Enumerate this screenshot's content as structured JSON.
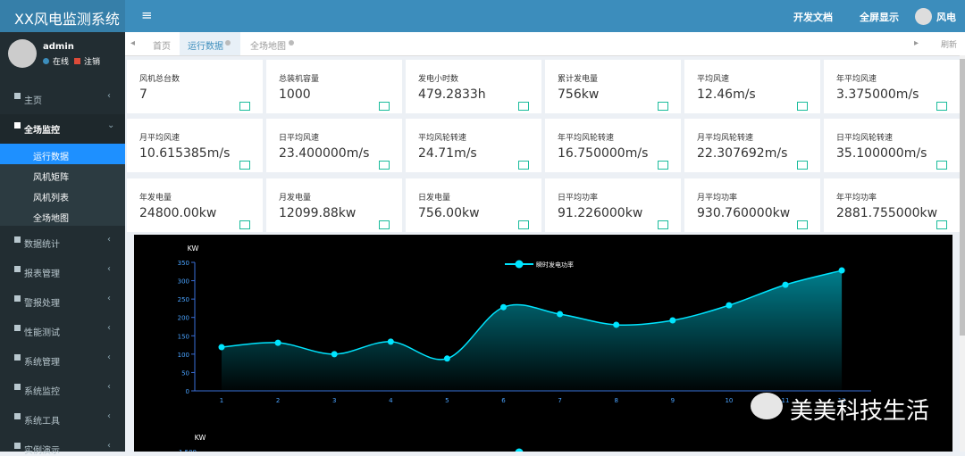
{
  "header": {
    "title": "XX风电监测系统",
    "links": [
      "开发文档",
      "全屏显示"
    ],
    "user": "风电"
  },
  "sidebar": {
    "user": {
      "name": "admin",
      "status": "在线",
      "logout": "注销"
    },
    "menu": [
      {
        "label": "主页"
      },
      {
        "label": "全场监控",
        "children": [
          "运行数据",
          "风机矩阵",
          "风机列表",
          "全场地图"
        ]
      },
      {
        "label": "数据统计"
      },
      {
        "label": "报表管理"
      },
      {
        "label": "警报处理"
      },
      {
        "label": "性能测试"
      },
      {
        "label": "系统管理"
      },
      {
        "label": "系统监控"
      },
      {
        "label": "系统工具"
      },
      {
        "label": "实例演示"
      }
    ]
  },
  "tabs": {
    "items": [
      "首页",
      "运行数据",
      "全场地图"
    ],
    "refresh": "刷新"
  },
  "cards": [
    {
      "label": "风机总台数",
      "value": "7"
    },
    {
      "label": "总装机容量",
      "value": "1000"
    },
    {
      "label": "发电小时数",
      "value": "479.2833h"
    },
    {
      "label": "累计发电量",
      "value": "756kw"
    },
    {
      "label": "平均风速",
      "value": "12.46m/s"
    },
    {
      "label": "年平均风速",
      "value": "3.375000m/s"
    },
    {
      "label": "月平均风速",
      "value": "10.615385m/s"
    },
    {
      "label": "日平均风速",
      "value": "23.400000m/s"
    },
    {
      "label": "平均风轮转速",
      "value": "24.71m/s"
    },
    {
      "label": "年平均风轮转速",
      "value": "16.750000m/s"
    },
    {
      "label": "月平均风轮转速",
      "value": "22.307692m/s"
    },
    {
      "label": "日平均风轮转速",
      "value": "35.100000m/s"
    },
    {
      "label": "年发电量",
      "value": "24800.00kw"
    },
    {
      "label": "月发电量",
      "value": "12099.88kw"
    },
    {
      "label": "日发电量",
      "value": "756.00kw"
    },
    {
      "label": "日平均功率",
      "value": "91.226000kw"
    },
    {
      "label": "月平均功率",
      "value": "930.760000kw"
    },
    {
      "label": "年平均功率",
      "value": "2881.755000kw"
    }
  ],
  "chart_data": [
    {
      "type": "line",
      "y_label": "KW",
      "categories": [
        "1",
        "2",
        "3",
        "4",
        "5",
        "6",
        "7",
        "8",
        "9",
        "10",
        "11",
        "12"
      ],
      "series": [
        {
          "name": "瞬时发电功率",
          "color": "#00e5ff",
          "values": [
            119,
            131,
            100,
            134,
            88,
            228,
            209,
            180,
            192,
            233,
            289,
            328
          ]
        }
      ],
      "ylim": [
        0,
        350
      ],
      "yticks": [
        0,
        50,
        100,
        150,
        200,
        250,
        300,
        350
      ]
    },
    {
      "type": "line",
      "y_label": "KW",
      "yticks": [
        {
          "value": 1500,
          "label": "1,500"
        }
      ]
    }
  ],
  "watermark": "美美科技生活"
}
